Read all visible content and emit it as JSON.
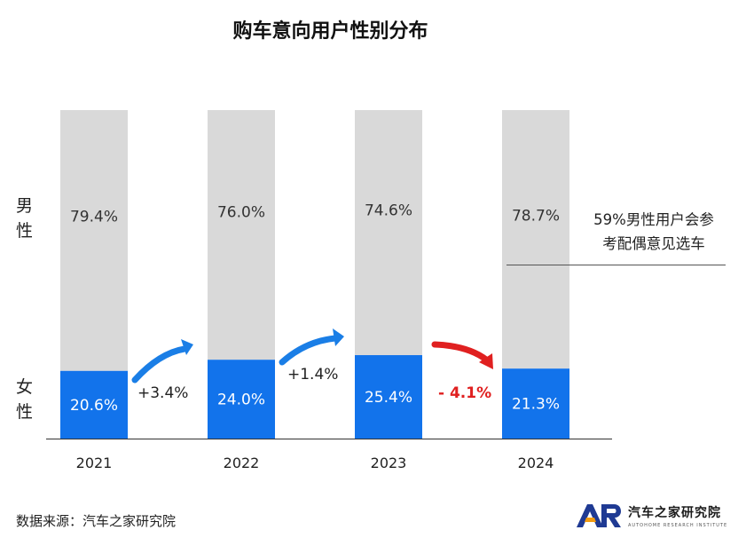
{
  "title": "购车意向用户性别分布",
  "chart_data": {
    "type": "bar",
    "stacked": true,
    "categories": [
      "2021",
      "2022",
      "2023",
      "2024"
    ],
    "series": [
      {
        "name": "女性",
        "values": [
          20.6,
          24.0,
          25.4,
          21.3
        ],
        "labels": [
          "20.6%",
          "24.0%",
          "25.4%",
          "21.3%"
        ],
        "color": "#1273eb"
      },
      {
        "name": "男性",
        "values": [
          79.4,
          76.0,
          74.6,
          78.7
        ],
        "labels": [
          "79.4%",
          "76.0%",
          "74.6%",
          "78.7%"
        ],
        "color": "#d9d9d9"
      }
    ],
    "ylim": [
      0,
      100
    ],
    "legend_side": {
      "male": [
        "男",
        "性"
      ],
      "female": [
        "女",
        "性"
      ]
    },
    "changes": [
      {
        "text": "+3.4%",
        "direction": "up",
        "color": "#1a7ee6"
      },
      {
        "text": "+1.4%",
        "direction": "up",
        "color": "#1a7ee6"
      },
      {
        "text": "- 4.1%",
        "direction": "down",
        "color": "#e02020"
      }
    ],
    "annotation": [
      "59%男性用户会参",
      "考配偶意见选车"
    ]
  },
  "footer": {
    "source": "数据来源：汽车之家研究院",
    "logo_cn": "汽车之家研究院",
    "logo_en": "AUTOHOME RESEARCH INSTITUTE",
    "logo_colors": {
      "dark": "#1f3a93",
      "orange": "#f39c12"
    }
  }
}
